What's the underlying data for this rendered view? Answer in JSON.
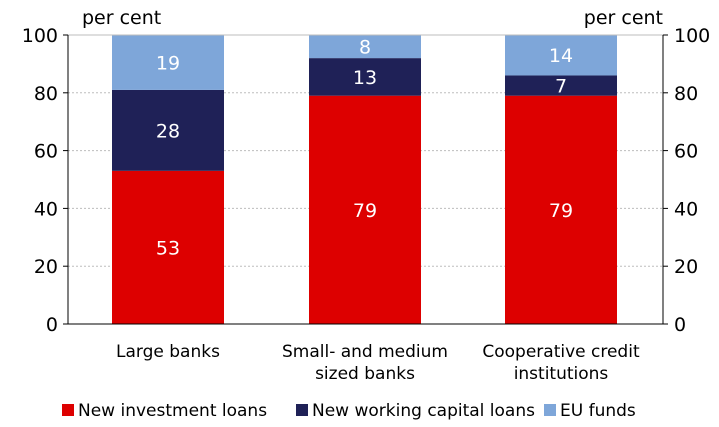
{
  "chart_data": {
    "type": "bar",
    "stacked": true,
    "categories": [
      [
        "Large banks"
      ],
      [
        "Small- and medium",
        "sized banks"
      ],
      [
        "Cooperative credit",
        "institutions"
      ]
    ],
    "series": [
      {
        "name": "New investment loans",
        "color": "#dd0000",
        "values": [
          53,
          79,
          79
        ]
      },
      {
        "name": "New working capital loans",
        "color": "#1f2157",
        "values": [
          28,
          13,
          7
        ]
      },
      {
        "name": "EU funds",
        "color": "#7ea6d9",
        "values": [
          19,
          8,
          14
        ]
      }
    ],
    "ylabel_left": "per cent",
    "ylabel_right": "per cent",
    "ylim": [
      0,
      100
    ],
    "yticks": [
      0,
      20,
      40,
      60,
      80,
      100
    ],
    "grid": true,
    "legend_position": "bottom",
    "data_label_color": "#ffffff"
  }
}
